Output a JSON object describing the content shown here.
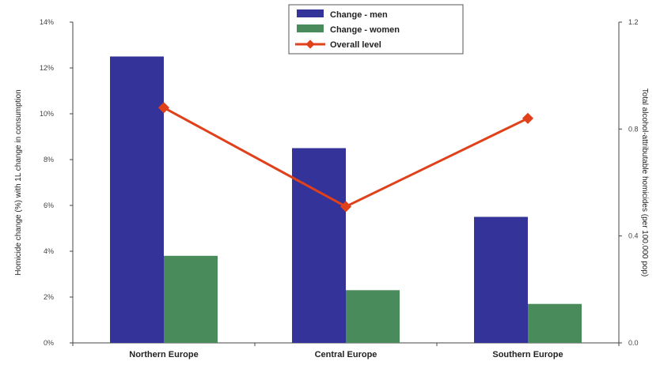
{
  "chart_data": {
    "type": "bar",
    "title": "",
    "categories": [
      "Northern Europe",
      "Central Europe",
      "Southern Europe"
    ],
    "series": [
      {
        "name": "Change - men",
        "type": "bar",
        "axis": "left",
        "color": "#333399",
        "values": [
          12.5,
          8.5,
          5.5
        ]
      },
      {
        "name": "Change - women",
        "type": "bar",
        "axis": "left",
        "color": "#4a8b5c",
        "values": [
          3.8,
          2.3,
          1.7
        ]
      },
      {
        "name": "Overall level",
        "type": "line",
        "axis": "right",
        "color": "#e0401a",
        "values": [
          0.88,
          0.51,
          0.84
        ]
      }
    ],
    "y_left": {
      "label": "Homicide change (%) with 1L change in consumption",
      "ylim": [
        0,
        14
      ],
      "ticks": [
        "0%",
        "2%",
        "4%",
        "6%",
        "8%",
        "10%",
        "12%",
        "14%"
      ]
    },
    "y_right": {
      "label": "Total alcohol-attributable homicides (per 100.000 pop)",
      "ylim": [
        0,
        1.2
      ],
      "ticks": [
        "0.0",
        "0.4",
        "0.8",
        "1.2"
      ]
    },
    "legend_position": "top-center",
    "grid": false
  }
}
